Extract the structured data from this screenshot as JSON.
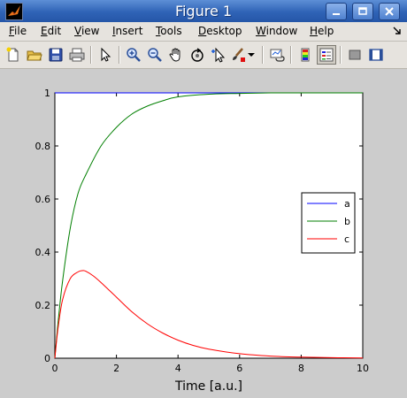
{
  "window": {
    "title": "Figure 1",
    "colors": {
      "titlebar": "#2f63b6",
      "menubar": "#e6e3de",
      "figure_bg": "#cccccc"
    }
  },
  "menu": {
    "items": [
      {
        "label": "File",
        "mnemonic": "F"
      },
      {
        "label": "Edit",
        "mnemonic": "E"
      },
      {
        "label": "View",
        "mnemonic": "V"
      },
      {
        "label": "Insert",
        "mnemonic": "I"
      },
      {
        "label": "Tools",
        "mnemonic": "T"
      },
      {
        "label": "Desktop",
        "mnemonic": "D"
      },
      {
        "label": "Window",
        "mnemonic": "W"
      },
      {
        "label": "Help",
        "mnemonic": "H"
      }
    ]
  },
  "toolbar": {
    "icons": [
      "new-figure-icon",
      "open-file-icon",
      "save-icon",
      "print-icon",
      "edit-plot-arrow-icon",
      "zoom-in-icon",
      "zoom-out-icon",
      "pan-hand-icon",
      "rotate-3d-icon",
      "data-cursor-icon",
      "brush-icon",
      "brush-dropdown-icon",
      "link-plot-icon",
      "insert-colorbar-icon",
      "insert-legend-icon",
      "hide-plot-tools-icon",
      "show-plot-tools-icon"
    ]
  },
  "chart_data": {
    "type": "line",
    "xlabel": "Time [a.u.]",
    "ylabel": "",
    "title": "",
    "xlim": [
      0,
      10
    ],
    "ylim": [
      0,
      1
    ],
    "xticks": [
      0,
      2,
      4,
      6,
      8,
      10
    ],
    "yticks": [
      0,
      0.2,
      0.4,
      0.6,
      0.8,
      1
    ],
    "grid": false,
    "legend_position": "top-right",
    "series": [
      {
        "name": "a",
        "color": "#0000ff",
        "x": [
          0,
          0.25,
          0.5,
          1,
          2,
          3,
          4,
          5,
          6,
          8,
          10
        ],
        "y": [
          1,
          1,
          1,
          1,
          1,
          1,
          1,
          1,
          1,
          1,
          1
        ]
      },
      {
        "name": "b",
        "color": "#007f00",
        "x": [
          0,
          0.1,
          0.25,
          0.5,
          0.75,
          1,
          1.5,
          2,
          2.5,
          3,
          3.5,
          4,
          5,
          6,
          7,
          8,
          10
        ],
        "y": [
          0,
          0.13,
          0.29,
          0.49,
          0.62,
          0.69,
          0.8,
          0.87,
          0.92,
          0.95,
          0.97,
          0.985,
          0.995,
          0.998,
          1,
          1,
          1
        ]
      },
      {
        "name": "c",
        "color": "#ff0000",
        "x": [
          0,
          0.1,
          0.25,
          0.5,
          0.75,
          0.9,
          1,
          1.25,
          1.5,
          2,
          2.5,
          3,
          3.5,
          4,
          4.5,
          5,
          6,
          7,
          8,
          9,
          10
        ],
        "y": [
          0,
          0.11,
          0.22,
          0.3,
          0.325,
          0.33,
          0.328,
          0.31,
          0.285,
          0.23,
          0.175,
          0.13,
          0.095,
          0.068,
          0.048,
          0.034,
          0.017,
          0.008,
          0.004,
          0.002,
          0.001
        ]
      }
    ]
  }
}
